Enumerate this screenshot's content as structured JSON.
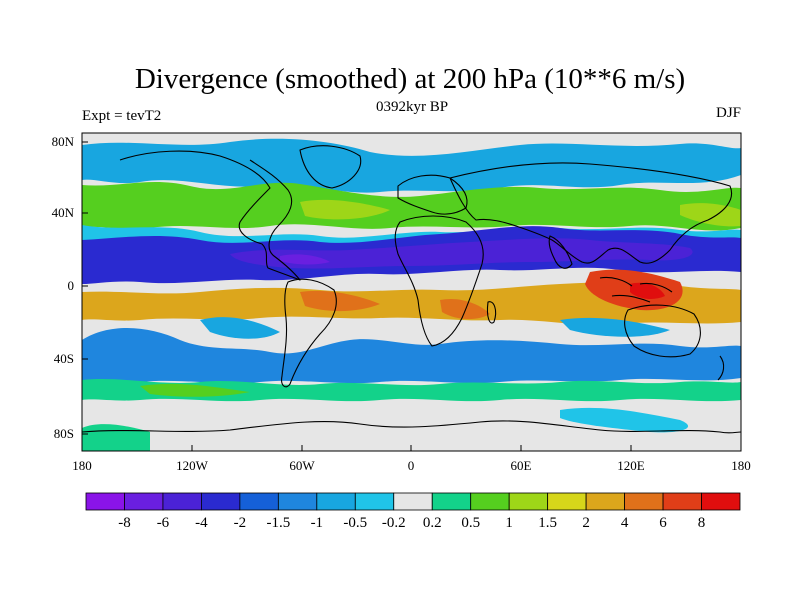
{
  "title": "Divergence (smoothed) at 200 hPa (10**6 m/s)",
  "subtitle_left": "Expt = tevT2",
  "subtitle_center": "0392kyr BP",
  "subtitle_right": "DJF",
  "lat_ticks": [
    "80N",
    "40N",
    "0",
    "40S",
    "80S"
  ],
  "lon_ticks": [
    "180",
    "120W",
    "60W",
    "0",
    "60E",
    "120E",
    "180"
  ],
  "colorbar": {
    "labels": [
      "-8",
      "-6",
      "-4",
      "-2",
      "-1.5",
      "-1",
      "-0.5",
      "-0.2",
      "0.2",
      "0.5",
      "1",
      "1.5",
      "2",
      "4",
      "6",
      "8"
    ],
    "colors": [
      "#8a14e8",
      "#6a1fe0",
      "#4b22d6",
      "#2a2ad0",
      "#1560d8",
      "#1f86de",
      "#18a6e0",
      "#20c4e8",
      "#e6e6e6",
      "#13d28a",
      "#55cf1f",
      "#9ed618",
      "#d6d61a",
      "#dca61c",
      "#e0711a",
      "#e03e18",
      "#e00e0e"
    ]
  },
  "chart_data": {
    "type": "heatmap",
    "title": "Divergence (smoothed) at 200 hPa (10**6 m/s)",
    "x_axis": "longitude",
    "y_axis": "latitude",
    "xlim": [
      -180,
      180
    ],
    "ylim": [
      -90,
      90
    ],
    "levels": [
      -8,
      -6,
      -4,
      -2,
      -1.5,
      -1,
      -0.5,
      -0.2,
      0.2,
      0.5,
      1,
      1.5,
      2,
      4,
      6,
      8
    ],
    "regions": [
      {
        "lon": [
          -180,
          180
        ],
        "lat": [
          55,
          90
        ],
        "level": -0.4
      },
      {
        "lon": [
          -180,
          180
        ],
        "lat": [
          35,
          50
        ],
        "level": 0.8
      },
      {
        "lon": [
          -180,
          180
        ],
        "lat": [
          0,
          25
        ],
        "level": -2.5
      },
      {
        "lon": [
          -120,
          170
        ],
        "lat": [
          7,
          18
        ],
        "level": -4.5
      },
      {
        "lon": [
          -180,
          180
        ],
        "lat": [
          -30,
          -5
        ],
        "level": 2.5
      },
      {
        "lon": [
          90,
          150
        ],
        "lat": [
          -18,
          -2
        ],
        "level": 5
      },
      {
        "lon": [
          -70,
          -40
        ],
        "lat": [
          -25,
          -10
        ],
        "level": 3
      },
      {
        "lon": [
          -180,
          180
        ],
        "lat": [
          -55,
          -35
        ],
        "level": 0.8
      },
      {
        "lon": [
          -180,
          180
        ],
        "lat": [
          -90,
          -60
        ],
        "level": 0
      }
    ]
  }
}
